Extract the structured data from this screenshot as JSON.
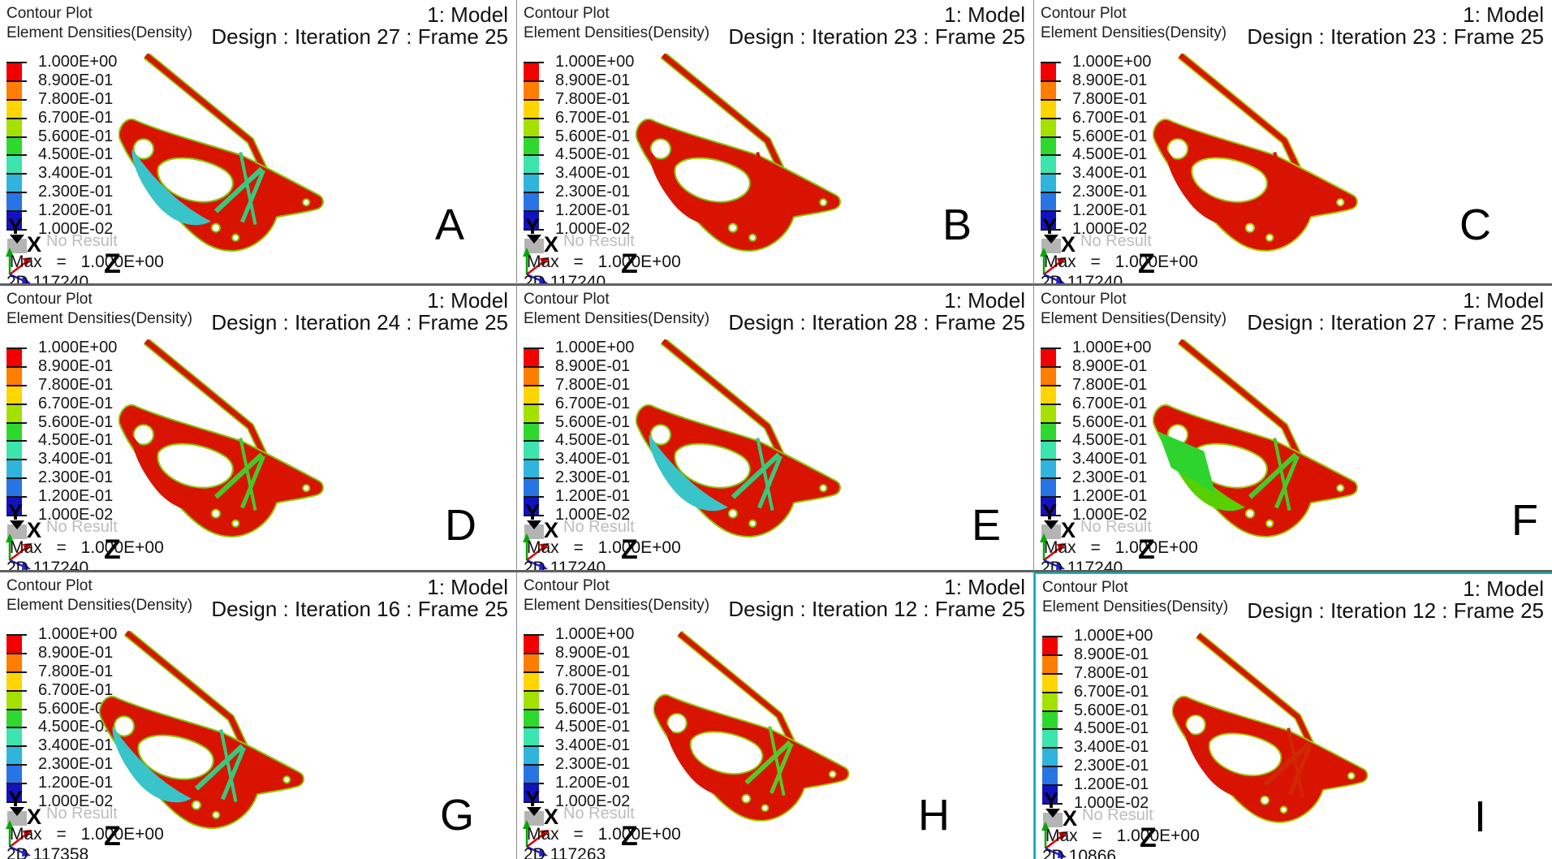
{
  "shared": {
    "contour_plot_label": "Contour Plot",
    "result_type_label": "Element Densities(Density)",
    "model_label": "1: Model",
    "no_result_label": "No Result",
    "max_label": "Max = 1.000E+00",
    "axis_x": "X",
    "axis_y": "Y",
    "axis_z": "Z"
  },
  "legend": {
    "values": [
      "1.000E+00",
      "8.900E-01",
      "7.800E-01",
      "6.700E-01",
      "5.600E-01",
      "4.500E-01",
      "3.400E-01",
      "2.300E-01",
      "1.200E-01",
      "1.000E-02"
    ],
    "colors": [
      "#f20000",
      "#ff7d00",
      "#ffd500",
      "#a4e000",
      "#2ed82e",
      "#3ce4ae",
      "#30b4dc",
      "#2874e4",
      "#1212be"
    ],
    "no_result_color": "#b4b4b4"
  },
  "triad": {
    "x_color": "#d40000",
    "y_color": "#00a800",
    "z_color": "#2020d0"
  },
  "selection": {
    "highlight_color": "#00bcbe",
    "selected_panel": "I"
  },
  "panels": [
    {
      "letter": "A",
      "design": "Design : Iteration 27 : Frame 25",
      "elem": "2D 117240",
      "model": {
        "body": "#d81400",
        "edge": "#86c800",
        "brace": "#38c87e",
        "accent1": "#38c4c8",
        "accent2": "transparent"
      }
    },
    {
      "letter": "B",
      "design": "Design : Iteration 23 : Frame 25",
      "elem": "2D 117240",
      "model": {
        "body": "#d81400",
        "edge": "#86c800",
        "brace": "#d81400",
        "accent1": "#d81400",
        "accent2": "transparent"
      }
    },
    {
      "letter": "C",
      "design": "Design : Iteration 23 : Frame 25",
      "elem": "2D 117240",
      "model": {
        "body": "#d81400",
        "edge": "#a8cc00",
        "brace": "#d81400",
        "accent1": "#d81400",
        "accent2": "transparent"
      }
    },
    {
      "letter": "D",
      "design": "Design : Iteration 24 : Frame 25",
      "elem": "2D 117240",
      "model": {
        "body": "#d81400",
        "edge": "#86c800",
        "brace": "#48c828",
        "accent1": "#d81400",
        "accent2": "transparent"
      }
    },
    {
      "letter": "E",
      "design": "Design : Iteration 28 : Frame 25",
      "elem": "2D 117240",
      "model": {
        "body": "#d81400",
        "edge": "#86c800",
        "brace": "#38c87e",
        "accent1": "#38c4c8",
        "accent2": "transparent"
      }
    },
    {
      "letter": "F",
      "design": "Design : Iteration 27 : Frame 25",
      "elem": "2D 117240",
      "model": {
        "body": "#d81400",
        "edge": "#9ac800",
        "brace": "#48c828",
        "accent1": "#58d000",
        "accent2": "#2ed42e"
      }
    },
    {
      "letter": "G",
      "design": "Design : Iteration 16 : Frame 25",
      "elem": "2D 117358",
      "model": {
        "body": "#d81400",
        "edge": "#86c800",
        "brace": "#38c87e",
        "accent1": "#38c4c8",
        "accent2": "transparent"
      }
    },
    {
      "letter": "H",
      "design": "Design : Iteration 12 : Frame 25",
      "elem": "2D 117263",
      "model": {
        "body": "#d81400",
        "edge": "#9ac800",
        "brace": "#58c828",
        "accent1": "#d81400",
        "accent2": "transparent"
      }
    },
    {
      "letter": "I",
      "design": "Design : Iteration 12 : Frame 25",
      "elem": "2D 10866",
      "selected": true,
      "model": {
        "body": "#d81400",
        "edge": "#a0c800",
        "brace": "#d02800",
        "accent1": "#d81400",
        "accent2": "transparent"
      }
    }
  ]
}
